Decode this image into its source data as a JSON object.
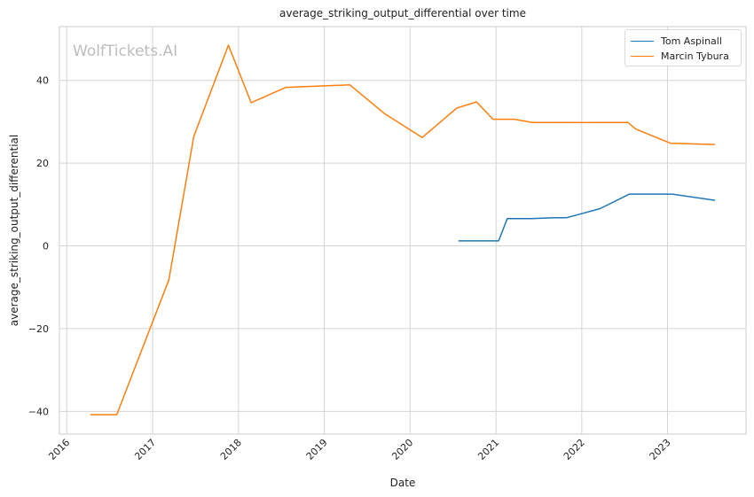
{
  "chart_data": {
    "type": "line",
    "title": "average_striking_output_differential over time",
    "xlabel": "Date",
    "ylabel": "average_striking_output_differential",
    "watermark": "WolfTickets.AI",
    "xlim": [
      "2015-12-01",
      "2023-12-01"
    ],
    "ylim": [
      -45.5,
      53.0
    ],
    "x_ticks": [
      "2016-01-01",
      "2017-01-01",
      "2018-01-01",
      "2019-01-01",
      "2020-01-01",
      "2021-01-01",
      "2022-01-01",
      "2023-01-01"
    ],
    "x_tick_labels": [
      "2016",
      "2017",
      "2018",
      "2019",
      "2020",
      "2021",
      "2022",
      "2023"
    ],
    "y_ticks": [
      -40,
      -20,
      0,
      20,
      40
    ],
    "y_tick_labels": [
      "−40",
      "−20",
      "0",
      "20",
      "40"
    ],
    "grid": true,
    "legend_position": "top-right",
    "series": [
      {
        "name": "Tom Aspinall",
        "color": "#1f77b4",
        "points": [
          [
            "2020-07-25",
            1.2
          ],
          [
            "2021-01-12",
            1.2
          ],
          [
            "2021-02-18",
            6.6
          ],
          [
            "2021-06-01",
            6.6
          ],
          [
            "2021-09-05",
            6.8
          ],
          [
            "2021-10-28",
            6.8
          ],
          [
            "2022-03-20",
            9.0
          ],
          [
            "2022-07-23",
            12.5
          ],
          [
            "2023-01-20",
            12.5
          ],
          [
            "2023-07-22",
            11.0
          ]
        ]
      },
      {
        "name": "Marcin Tybura",
        "color": "#ff7f0e",
        "points": [
          [
            "2016-04-10",
            -40.8
          ],
          [
            "2016-08-01",
            -40.8
          ],
          [
            "2017-03-11",
            -8.2
          ],
          [
            "2017-06-25",
            26.5
          ],
          [
            "2017-11-19",
            48.5
          ],
          [
            "2018-02-24",
            34.6
          ],
          [
            "2018-07-22",
            38.3
          ],
          [
            "2019-04-20",
            38.9
          ],
          [
            "2019-09-14",
            32.0
          ],
          [
            "2020-02-22",
            26.2
          ],
          [
            "2020-07-18",
            33.3
          ],
          [
            "2020-10-10",
            34.8
          ],
          [
            "2020-12-19",
            30.6
          ],
          [
            "2021-03-20",
            30.6
          ],
          [
            "2021-06-05",
            29.8
          ],
          [
            "2022-07-16",
            29.8
          ],
          [
            "2022-08-20",
            28.2
          ],
          [
            "2023-01-14",
            24.8
          ],
          [
            "2023-07-22",
            24.5
          ]
        ]
      }
    ]
  }
}
